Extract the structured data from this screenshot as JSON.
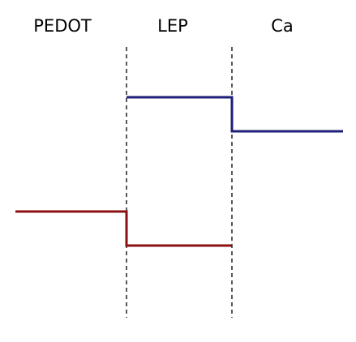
{
  "regions": [
    {
      "label": "PEDOT"
    },
    {
      "label": "LEP"
    },
    {
      "label": "Ca"
    }
  ],
  "colors": {
    "upper_level": "#1f1f7a",
    "lower_level": "#8b1010",
    "interface": "#000000"
  }
}
